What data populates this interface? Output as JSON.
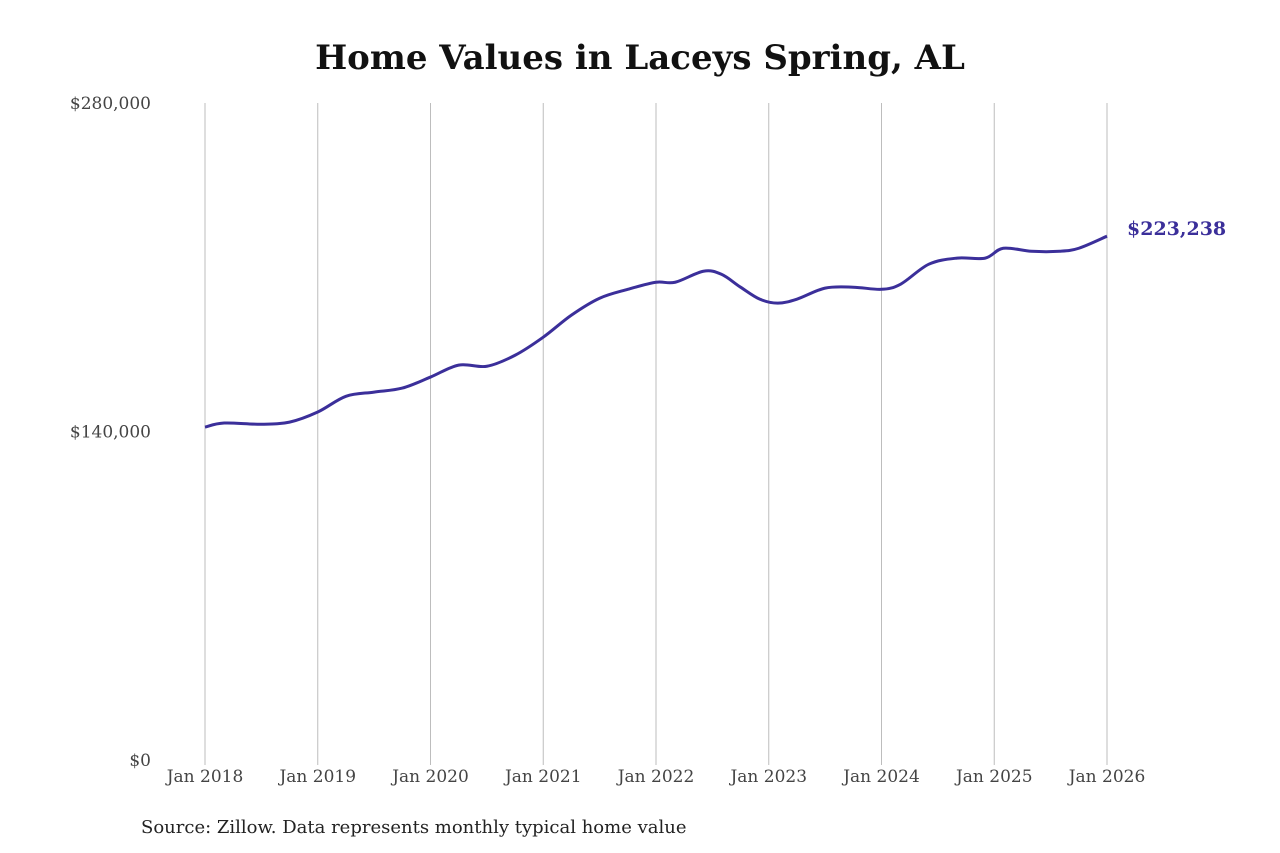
{
  "chart_data": {
    "type": "line",
    "title": "Home Values in Laceys Spring, AL",
    "source": "Source: Zillow. Data represents monthly typical home value",
    "xlabel": "",
    "ylabel": "",
    "ylim": [
      0,
      280000
    ],
    "xlim": [
      2018.0,
      2026.0
    ],
    "y_ticks": [
      0,
      140000,
      280000
    ],
    "y_tick_labels": [
      "$0",
      "$140,000",
      "$280,000"
    ],
    "x_ticks": [
      2018,
      2019,
      2020,
      2021,
      2022,
      2023,
      2024,
      2025,
      2026
    ],
    "x_tick_labels": [
      "Jan 2018",
      "Jan 2019",
      "Jan 2020",
      "Jan 2021",
      "Jan 2022",
      "Jan 2023",
      "Jan 2024",
      "Jan 2025",
      "Jan 2026"
    ],
    "grid": "vertical",
    "end_label": "$223,238",
    "line_color": "#3b2f9a",
    "series": [
      {
        "x": [
          2018.0,
          2018.17,
          2018.5,
          2018.75,
          2019.0,
          2019.25,
          2019.5,
          2019.75,
          2020.0,
          2020.25,
          2020.5,
          2020.75,
          2021.0,
          2021.25,
          2021.5,
          2021.75,
          2022.0,
          2022.17,
          2022.42,
          2022.58,
          2022.75,
          2022.92,
          2023.08,
          2023.25,
          2023.5,
          2023.75,
          2024.0,
          2024.17,
          2024.42,
          2024.67,
          2024.92,
          2025.08,
          2025.33,
          2025.58,
          2025.75,
          2026.0
        ],
        "values": [
          141900,
          143600,
          143100,
          144000,
          148300,
          155000,
          156800,
          158500,
          163200,
          168300,
          167800,
          172500,
          180200,
          189600,
          196800,
          200600,
          203600,
          203600,
          208300,
          207000,
          201500,
          196400,
          194700,
          196400,
          201100,
          201500,
          200600,
          202800,
          211300,
          213900,
          213900,
          218100,
          216800,
          216800,
          218100,
          223238
        ]
      }
    ]
  }
}
